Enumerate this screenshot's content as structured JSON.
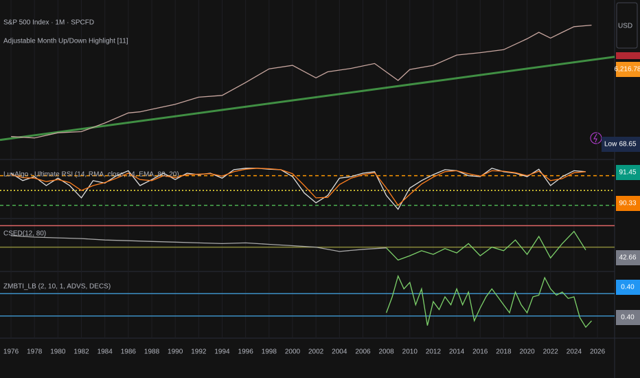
{
  "chart_data": [
    {
      "type": "line",
      "title": "S&P 500 Index · 1M · SPCFD",
      "subtitle": "Adjustable Month Up/Down Highlight [11]",
      "currency": "USD",
      "log_scale": true,
      "ylim": [
        45,
        15000
      ],
      "x": [
        1976,
        1978,
        1980,
        1982,
        1984,
        1986,
        1987,
        1988,
        1990,
        1992,
        1994,
        1996,
        1998,
        2000,
        2002,
        2003,
        2005,
        2007,
        2009,
        2010,
        2012,
        2014,
        2016,
        2018,
        2020,
        2021,
        2022,
        2023,
        2024,
        2025.5
      ],
      "series": [
        {
          "color": "#c9a7a0",
          "values": [
            100,
            95,
            115,
            120,
            165,
            240,
            250,
            275,
            330,
            430,
            460,
            740,
            1230,
            1400,
            880,
            1100,
            1250,
            1500,
            800,
            1200,
            1400,
            2050,
            2240,
            2500,
            3750,
            4760,
            3850,
            4770,
            5880,
            6216.78
          ]
        }
      ],
      "trendline": {
        "color": "#4caf50",
        "x": [
          1975.06,
          2027.46
        ],
        "values": [
          88,
          1920
        ]
      },
      "price_labels": [
        {
          "value": 6216.78,
          "label": "6,216.78",
          "color": "#f7931a"
        }
      ],
      "low_label": "Low",
      "low_value": 68.65
    },
    {
      "type": "line",
      "title": "LuxAlgo - Ultimate RSI (14, RMA, close, 14, EMA, 80, 20)",
      "ylim": [
        -4,
        110
      ],
      "x": [
        1976,
        1977,
        1978,
        1979,
        1980,
        1981,
        1982,
        1983,
        1984,
        1985,
        1986,
        1987,
        1988,
        1989,
        1990,
        1991,
        1992,
        1993,
        1994,
        1995,
        1996,
        1997,
        1998,
        1999,
        2000,
        2001,
        2002,
        2003,
        2004,
        2005,
        2006,
        2007,
        2008,
        2009,
        2010,
        2011,
        2012,
        2013,
        2014,
        2015,
        2016,
        2017,
        2018,
        2019,
        2020,
        2021,
        2022,
        2023,
        2024,
        2025
      ],
      "series": [
        {
          "color": "#e0e0e0",
          "values": [
            85,
            70,
            78,
            60,
            75,
            60,
            35,
            70,
            65,
            80,
            90,
            60,
            72,
            85,
            72,
            85,
            82,
            85,
            75,
            92,
            95,
            95,
            93,
            92,
            78,
            45,
            25,
            40,
            75,
            78,
            85,
            88,
            40,
            12,
            55,
            70,
            82,
            92,
            90,
            80,
            78,
            95,
            88,
            85,
            78,
            93,
            60,
            78,
            90,
            88
          ]
        },
        {
          "color": "#ff7f1e",
          "values": [
            82,
            76,
            75,
            68,
            72,
            66,
            50,
            60,
            66,
            75,
            85,
            72,
            70,
            80,
            76,
            82,
            83,
            84,
            79,
            88,
            93,
            95,
            94,
            92,
            84,
            60,
            35,
            36,
            62,
            75,
            82,
            86,
            55,
            20,
            42,
            63,
            77,
            88,
            90,
            84,
            79,
            90,
            89,
            86,
            80,
            89,
            70,
            74,
            86,
            88
          ]
        }
      ],
      "levels": [
        {
          "value": 80,
          "color": "#ff9800",
          "dash": "5,4"
        },
        {
          "value": 50,
          "color": "#ffeb3b",
          "dash": "2,3"
        },
        {
          "value": 20,
          "color": "#4caf50",
          "dash": "5,4"
        }
      ],
      "price_labels": [
        {
          "value": 91.45,
          "label": "91.45",
          "color": "#089981"
        },
        {
          "value": 90.33,
          "label": "90.33",
          "color": "#f57c00"
        }
      ]
    },
    {
      "type": "line",
      "title": "CSED(12, 80)",
      "ylim": [
        18,
        88
      ],
      "x": [
        1976,
        1978,
        1980,
        1982,
        1984,
        1986,
        1988,
        1990,
        1992,
        1994,
        1996,
        1998,
        2000,
        2002,
        2004,
        2006,
        2008,
        2009,
        2010,
        2011,
        2012,
        2013,
        2014,
        2015,
        2016,
        2017,
        2018,
        2019,
        2020,
        2021,
        2022,
        2023,
        2024,
        2025
      ],
      "series": [
        {
          "color": "#a8a8a8",
          "values": [
            66,
            64,
            63,
            62,
            60,
            59,
            58,
            57,
            56,
            55,
            56,
            54,
            52,
            50,
            44,
            47,
            49,
            null,
            null,
            null,
            null,
            null,
            null,
            null,
            null,
            null,
            null,
            null,
            null,
            null,
            null,
            null,
            null,
            null
          ]
        },
        {
          "color": "#7ed36b",
          "values": [
            null,
            null,
            null,
            null,
            null,
            null,
            null,
            null,
            null,
            null,
            null,
            null,
            null,
            null,
            null,
            null,
            49,
            32,
            38,
            45,
            40,
            48,
            42,
            55,
            38,
            50,
            45,
            60,
            40,
            65,
            35,
            55,
            72,
            46
          ]
        }
      ],
      "levels": [
        {
          "value": 80,
          "color": "#e06666",
          "dash": ""
        },
        {
          "value": 50,
          "color": "#8a8a3a",
          "dash": ""
        }
      ],
      "price_labels": [
        {
          "value": 42.66,
          "label": "42.66",
          "color": "#787b86"
        }
      ]
    },
    {
      "type": "line",
      "title": "ZMBTI_LB (2, 10, 1, ADVS, DECS)",
      "ylim": [
        0.3,
        0.7
      ],
      "xlim": [
        1975.06,
        2027.46
      ],
      "xticks": [
        1976,
        1978,
        1980,
        1982,
        1984,
        1986,
        1988,
        1990,
        1992,
        1994,
        1996,
        1998,
        2000,
        2002,
        2004,
        2006,
        2008,
        2010,
        2012,
        2014,
        2016,
        2018,
        2020,
        2022,
        2024,
        2026
      ],
      "x": [
        2008,
        2008.5,
        2009,
        2009.5,
        2010,
        2010.5,
        2011,
        2011.5,
        2012,
        2012.5,
        2013,
        2013.5,
        2014,
        2014.5,
        2015,
        2015.5,
        2016,
        2016.5,
        2017,
        2017.5,
        2018,
        2018.5,
        2019,
        2019.5,
        2020,
        2020.5,
        2021,
        2021.5,
        2022,
        2022.5,
        2023,
        2023.5,
        2024,
        2024.5,
        2025,
        2025.5
      ],
      "series": [
        {
          "color": "#7ed36b",
          "values": [
            0.45,
            0.55,
            0.68,
            0.6,
            0.64,
            0.5,
            0.6,
            0.37,
            0.52,
            0.47,
            0.55,
            0.5,
            0.6,
            0.5,
            0.58,
            0.4,
            0.48,
            0.55,
            0.6,
            0.55,
            0.5,
            0.45,
            0.58,
            0.5,
            0.45,
            0.55,
            0.56,
            0.67,
            0.6,
            0.56,
            0.58,
            0.54,
            0.55,
            0.42,
            0.36,
            0.4
          ]
        }
      ],
      "levels": [
        {
          "value": 0.57,
          "color": "#3c8fc4",
          "dash": ""
        },
        {
          "value": 0.43,
          "color": "#3c8fc4",
          "dash": ""
        }
      ],
      "price_labels": [
        {
          "value": 0.4,
          "label": "0.40",
          "color": "#2196f3"
        },
        {
          "value": 0.4,
          "label": "0.40",
          "color": "#787b86"
        }
      ]
    }
  ]
}
